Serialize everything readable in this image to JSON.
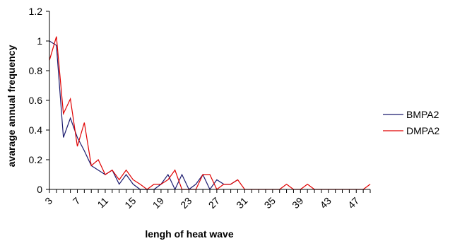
{
  "chart_data": {
    "type": "line",
    "title": "",
    "xlabel": "lengh of heat wave",
    "ylabel": "avarage annual frequency",
    "xlim": [
      3,
      49
    ],
    "ylim": [
      0,
      1.2
    ],
    "x_tick_values": [
      3,
      7,
      11,
      15,
      19,
      23,
      27,
      31,
      35,
      39,
      43,
      47
    ],
    "x_tick_labels": [
      "3",
      "7",
      "11",
      "15",
      "19",
      "23",
      "27",
      "31",
      "35",
      "39",
      "43",
      "47"
    ],
    "y_tick_values": [
      0,
      0.2,
      0.4,
      0.6,
      0.8,
      1.0,
      1.2
    ],
    "y_tick_labels": [
      "0",
      "0.2",
      "0.4",
      "0.6",
      "0.8",
      "1",
      "1.2"
    ],
    "grid": false,
    "legend": "right",
    "series": [
      {
        "name": "BMPA2",
        "color": "#1a1a6e",
        "x": [
          3,
          4,
          5,
          6,
          7,
          8,
          9,
          10,
          11,
          12,
          13,
          14,
          15,
          16,
          17,
          18,
          19,
          20,
          21,
          22,
          23,
          24,
          25,
          26,
          27,
          28,
          29,
          30
        ],
        "values": [
          1.0,
          0.97,
          0.35,
          0.48,
          0.35,
          0.26,
          0.16,
          0.13,
          0.1,
          0.13,
          0.035,
          0.1,
          0.035,
          0.0,
          0.0,
          0.0,
          0.035,
          0.1,
          0.0,
          0.1,
          0.0,
          0.035,
          0.1,
          0.0,
          0.065,
          0.035,
          0.035,
          0.065
        ]
      },
      {
        "name": "DMPA2",
        "color": "#e00000",
        "x": [
          3,
          4,
          5,
          6,
          7,
          8,
          9,
          10,
          11,
          12,
          13,
          14,
          15,
          16,
          17,
          18,
          19,
          20,
          21,
          22,
          23,
          24,
          25,
          26,
          27,
          28,
          29,
          30,
          31,
          32,
          33,
          34,
          35,
          36,
          37,
          38,
          39,
          40,
          41,
          42,
          43,
          44,
          45,
          46,
          47,
          48,
          49
        ],
        "values": [
          0.87,
          1.03,
          0.51,
          0.61,
          0.29,
          0.45,
          0.16,
          0.2,
          0.1,
          0.13,
          0.065,
          0.13,
          0.065,
          0.035,
          0.0,
          0.035,
          0.035,
          0.065,
          0.13,
          0.0,
          0.0,
          0.0,
          0.1,
          0.1,
          0.0,
          0.035,
          0.035,
          0.065,
          0.0,
          0.0,
          0.0,
          0.0,
          0.0,
          0.0,
          0.035,
          0.0,
          0.0,
          0.035,
          0.0,
          0.0,
          0.0,
          0.0,
          0.0,
          0.0,
          0.0,
          0.0,
          0.035
        ]
      }
    ]
  }
}
